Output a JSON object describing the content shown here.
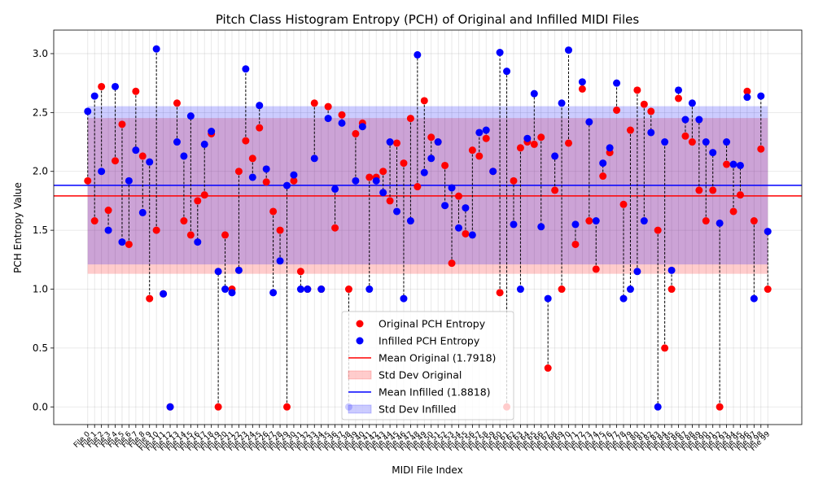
{
  "chart_data": {
    "type": "scatter",
    "title": "Pitch Class Histogram Entropy (PCH) of Original and Infilled MIDI Files",
    "xlabel": "MIDI File Index",
    "ylabel": "PCH Entropy Value",
    "ylim": [
      -0.15,
      3.2
    ],
    "yticks": [
      0.0,
      0.5,
      1.0,
      1.5,
      2.0,
      2.5,
      3.0
    ],
    "ytick_labels": [
      "0.0",
      "0.5",
      "1.0",
      "1.5",
      "2.0",
      "2.5",
      "3.0"
    ],
    "grid": true,
    "legend_position": "lower center",
    "categories": [
      "File 0",
      "File 1",
      "File 2",
      "File 3",
      "File 4",
      "File 5",
      "File 6",
      "File 7",
      "File 8",
      "File 9",
      "File 10",
      "File 11",
      "File 12",
      "File 13",
      "File 14",
      "File 15",
      "File 16",
      "File 17",
      "File 18",
      "File 19",
      "File 20",
      "File 21",
      "File 22",
      "File 23",
      "File 24",
      "File 25",
      "File 26",
      "File 27",
      "File 28",
      "File 29",
      "File 30",
      "File 31",
      "File 32",
      "File 33",
      "File 34",
      "File 35",
      "File 36",
      "File 37",
      "File 38",
      "File 39",
      "File 40",
      "File 41",
      "File 42",
      "File 43",
      "File 44",
      "File 45",
      "File 46",
      "File 47",
      "File 48",
      "File 49",
      "File 50",
      "File 51",
      "File 52",
      "File 53",
      "File 54",
      "File 55",
      "File 56",
      "File 57",
      "File 58",
      "File 59",
      "File 60",
      "File 61",
      "File 62",
      "File 63",
      "File 64",
      "File 65",
      "File 66",
      "File 67",
      "File 68",
      "File 69",
      "File 70",
      "File 71",
      "File 72",
      "File 73",
      "File 74",
      "File 75",
      "File 76",
      "File 77",
      "File 78",
      "File 79",
      "File 80",
      "File 81",
      "File 82",
      "File 83",
      "File 84",
      "File 85",
      "File 86",
      "File 87",
      "File 88",
      "File 89",
      "File 90",
      "File 91",
      "File 92",
      "File 93",
      "File 94",
      "File 95",
      "File 96",
      "File 97",
      "File 98",
      "File 99"
    ],
    "series": [
      {
        "name": "Original PCH Entropy",
        "color": "#ff0000",
        "values": [
          1.92,
          1.58,
          2.72,
          1.67,
          2.09,
          2.4,
          1.38,
          2.68,
          2.13,
          0.92,
          1.5,
          0.96,
          0.0,
          2.58,
          1.58,
          1.46,
          1.75,
          1.8,
          2.32,
          0.0,
          1.46,
          1.0,
          2.0,
          2.26,
          2.11,
          2.37,
          1.91,
          1.66,
          1.5,
          0.0,
          1.92,
          1.15,
          1.0,
          2.58,
          1.0,
          2.55,
          1.52,
          2.48,
          1.0,
          2.32,
          2.41,
          1.95,
          1.95,
          2.0,
          1.75,
          2.24,
          2.07,
          2.45,
          1.87,
          2.6,
          2.29,
          2.25,
          2.05,
          1.22,
          1.79,
          1.47,
          2.18,
          2.13,
          2.28,
          2.0,
          0.97,
          0.0,
          1.92,
          2.2,
          2.25,
          2.23,
          2.29,
          0.33,
          1.84,
          1.0,
          2.24,
          1.38,
          2.7,
          1.58,
          1.17,
          1.96,
          2.16,
          2.52,
          1.72,
          2.35,
          2.69,
          2.57,
          2.51,
          1.5,
          0.5,
          1.0,
          2.62,
          2.3,
          2.25,
          1.84,
          1.58,
          1.84,
          0.0,
          2.06,
          1.66,
          1.8,
          2.68,
          1.58,
          2.19,
          1.0
        ]
      },
      {
        "name": "Infilled PCH Entropy",
        "color": "#0000ff",
        "values": [
          2.51,
          2.64,
          2.0,
          1.5,
          2.72,
          1.4,
          1.92,
          2.18,
          1.65,
          2.08,
          3.04,
          0.96,
          0.0,
          2.25,
          2.13,
          2.47,
          1.4,
          2.23,
          2.34,
          1.15,
          1.0,
          0.97,
          1.16,
          2.87,
          1.95,
          2.56,
          2.02,
          0.97,
          1.24,
          1.88,
          1.97,
          1.0,
          1.0,
          2.11,
          1.0,
          2.45,
          1.85,
          2.41,
          0.0,
          1.92,
          2.38,
          1.0,
          1.92,
          1.82,
          2.25,
          1.66,
          0.92,
          1.58,
          2.99,
          1.99,
          2.11,
          2.25,
          1.71,
          1.86,
          1.52,
          1.69,
          1.46,
          2.33,
          2.35,
          2.0,
          3.01,
          2.85,
          1.55,
          1.0,
          2.28,
          2.66,
          1.53,
          0.92,
          2.13,
          2.58,
          3.03,
          1.55,
          2.76,
          2.42,
          1.58,
          2.07,
          2.2,
          2.75,
          0.92,
          1.0,
          1.15,
          1.58,
          2.33,
          0.0,
          2.25,
          1.16,
          2.69,
          2.44,
          2.58,
          2.44,
          2.25,
          2.16,
          1.56,
          2.25,
          2.06,
          2.05,
          2.63,
          0.92,
          2.64,
          1.49
        ]
      }
    ],
    "mean_original": 1.7918,
    "std_original": 0.6615,
    "mean_infilled": 1.8818,
    "std_infilled": 0.6718,
    "legend": {
      "original_points": "Original PCH Entropy",
      "infilled_points": "Infilled PCH Entropy",
      "mean_original": "Mean Original (1.7918)",
      "std_original": "Std Dev Original",
      "mean_infilled": "Mean Infilled (1.8818)",
      "std_infilled": "Std Dev Infilled"
    },
    "colors": {
      "original": "#ff0000",
      "infilled": "#0000ff",
      "std_original_fill": "#ff0000",
      "std_infilled_fill": "#0000ff",
      "grid": "#b0b0b0"
    }
  }
}
